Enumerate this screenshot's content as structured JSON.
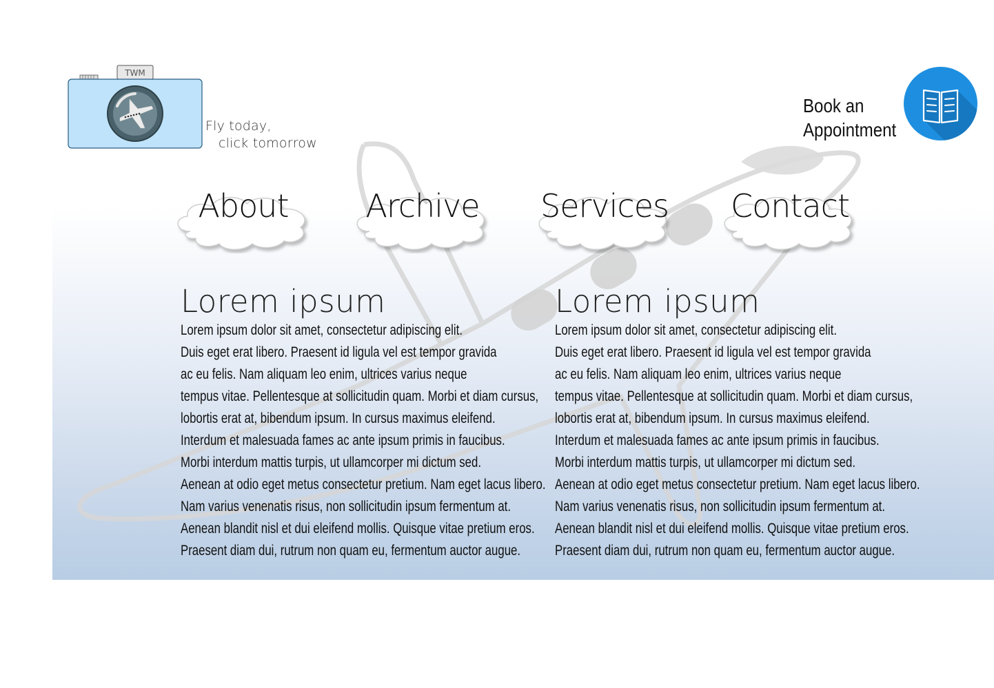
{
  "logo": {
    "camera_label": "TWM"
  },
  "tagline": {
    "line1": "Fly today,",
    "line2": "click tomorrow"
  },
  "book": {
    "line1": "Book an",
    "line2": "Appointment"
  },
  "nav": [
    {
      "label": "About"
    },
    {
      "label": "Archive"
    },
    {
      "label": "Services"
    },
    {
      "label": "Contact"
    }
  ],
  "columns": [
    {
      "heading": "Lorem ipsum",
      "lines": [
        "Lorem ipsum dolor sit amet, consectetur adipiscing elit.",
        "Duis eget erat libero. Praesent id ligula vel est tempor gravida",
        "ac eu felis. Nam aliquam leo enim, ultrices varius neque",
        "tempus vitae. Pellentesque at sollicitudin quam. Morbi et diam cursus,",
        "lobortis erat at, bibendum ipsum. In cursus maximus eleifend.",
        "Interdum et malesuada fames ac ante ipsum primis in faucibus.",
        "Morbi interdum mattis turpis, ut ullamcorper mi dictum sed.",
        "Aenean at odio eget metus consectetur pretium. Nam eget lacus libero.",
        "Nam varius venenatis risus, non sollicitudin ipsum fermentum at.",
        "Aenean blandit nisl et dui eleifend mollis. Quisque vitae pretium eros.",
        "Praesent diam dui, rutrum non quam eu, fermentum auctor augue."
      ]
    },
    {
      "heading": "Lorem ipsum",
      "lines": [
        "Lorem ipsum dolor sit amet, consectetur adipiscing elit.",
        "Duis eget erat libero. Praesent id ligula vel est tempor gravida",
        "ac eu felis. Nam aliquam leo enim, ultrices varius neque",
        "tempus vitae. Pellentesque at sollicitudin quam. Morbi et diam cursus,",
        "lobortis erat at, bibendum ipsum. In cursus maximus eleifend.",
        "Interdum et malesuada fames ac ante ipsum primis in faucibus.",
        "Morbi interdum mattis turpis, ut ullamcorper mi dictum sed.",
        "Aenean at odio eget metus consectetur pretium. Nam eget lacus libero.",
        "Nam varius venenatis risus, non sollicitudin ipsum fermentum at.",
        "Aenean blandit nisl et dui eleifend mollis. Quisque vitae pretium eros.",
        "Praesent diam dui, rutrum non quam eu, fermentum auctor augue."
      ]
    }
  ],
  "colors": {
    "accent": "#1e8fe0",
    "camera_body": "#bfe3fa",
    "band_bottom": "#b8cde4"
  }
}
